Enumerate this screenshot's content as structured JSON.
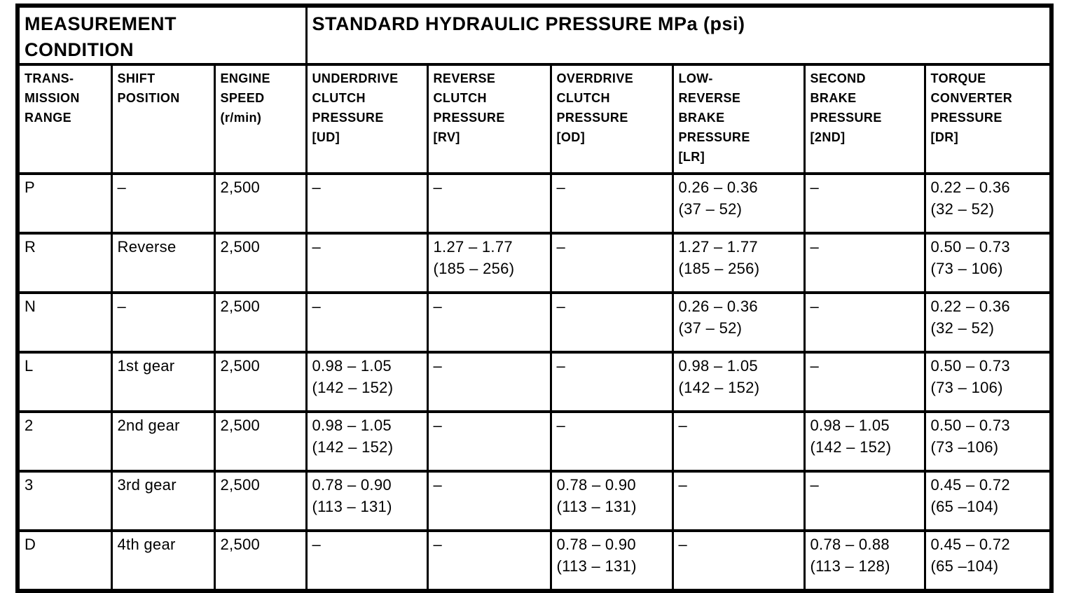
{
  "table": {
    "title_semantic": "Standard hydraulic pressure specification table",
    "top_headers": [
      {
        "label": "MEASUREMENT\nCONDITION",
        "colspan": 3
      },
      {
        "label": "STANDARD HYDRAULIC PRESSURE MPa (psi)",
        "colspan": 6
      }
    ],
    "columns": [
      {
        "id": "transmission-range",
        "label": "TRANS-\nMISSION\nRANGE"
      },
      {
        "id": "shift-position",
        "label": "SHIFT\nPOSITION"
      },
      {
        "id": "engine-speed",
        "label": "ENGINE\nSPEED\n(r/min)"
      },
      {
        "id": "ud-pressure",
        "label": "UNDERDRIVE\nCLUTCH\nPRESSURE\n[UD]"
      },
      {
        "id": "rv-pressure",
        "label": "REVERSE\nCLUTCH\nPRESSURE\n[RV]"
      },
      {
        "id": "od-pressure",
        "label": "OVERDRIVE\nCLUTCH\nPRESSURE\n[OD]"
      },
      {
        "id": "lr-pressure",
        "label": "LOW-\nREVERSE\nBRAKE\nPRESSURE\n[LR]"
      },
      {
        "id": "2nd-pressure",
        "label": "SECOND\nBRAKE\nPRESSURE\n[2ND]"
      },
      {
        "id": "dr-pressure",
        "label": "TORQUE\nCONVERTER\nPRESSURE\n[DR]"
      }
    ],
    "rows": [
      {
        "id": "P",
        "cells": [
          "P",
          "–",
          "2,500",
          "–",
          "–",
          "–",
          "0.26 – 0.36\n(37 – 52)",
          "–",
          "0.22 – 0.36\n(32 – 52)"
        ]
      },
      {
        "id": "R",
        "cells": [
          "R",
          "Reverse",
          "2,500",
          "–",
          "1.27 – 1.77\n(185 – 256)",
          "–",
          "1.27 – 1.77\n(185 – 256)",
          "–",
          "0.50 – 0.73\n(73 – 106)"
        ]
      },
      {
        "id": "N",
        "cells": [
          "N",
          "–",
          "2,500",
          "–",
          "–",
          "–",
          "0.26 – 0.36\n(37 – 52)",
          "–",
          "0.22 – 0.36\n(32 – 52)"
        ]
      },
      {
        "id": "L",
        "cells": [
          "L",
          "1st gear",
          "2,500",
          "0.98 – 1.05\n(142 – 152)",
          "–",
          "–",
          "0.98 – 1.05\n(142 – 152)",
          "–",
          "0.50 – 0.73\n(73 – 106)"
        ]
      },
      {
        "id": "2",
        "cells": [
          "2",
          "2nd gear",
          "2,500",
          "0.98 – 1.05\n(142 – 152)",
          "–",
          "–",
          "–",
          "0.98 – 1.05\n(142 – 152)",
          "0.50 – 0.73\n(73 –106)"
        ]
      },
      {
        "id": "3",
        "cells": [
          "3",
          "3rd gear",
          "2,500",
          "0.78 – 0.90\n(113 – 131)",
          "–",
          "0.78 – 0.90\n(113 – 131)",
          "–",
          "–",
          "0.45 – 0.72\n(65 –104)"
        ]
      },
      {
        "id": "D",
        "cells": [
          "D",
          "4th gear",
          "2,500",
          "–",
          "–",
          "0.78 – 0.90\n(113 – 131)",
          "–",
          "0.78 – 0.88\n(113 – 128)",
          "0.45 – 0.72\n(65 –104)"
        ]
      }
    ]
  },
  "colors": {
    "background": "#ffffff",
    "border": "#000000",
    "text": "#000000"
  }
}
